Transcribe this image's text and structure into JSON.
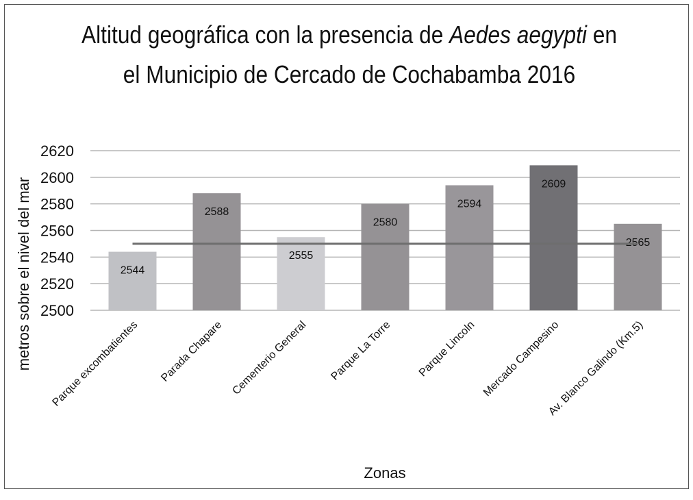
{
  "chart_data": {
    "type": "bar",
    "title_parts": [
      {
        "text": "Altitud geográfica con la presencia de ",
        "italic": false
      },
      {
        "text": "Aedes aegypti",
        "italic": true
      },
      {
        "text": " en el Municipio de Cercado de Cochabamba 2016",
        "italic": false
      }
    ],
    "xlabel": "Zonas",
    "ylabel": "metros sobre el nivel del mar",
    "categories": [
      "Parque excombatientes",
      "Parada Chapare",
      "Cementerio General",
      "Parque La Torre",
      "Parque Lincoln",
      "Mercado Campesino",
      "Av. Blanco Galindo (Km.5)"
    ],
    "values": [
      2544,
      2588,
      2555,
      2580,
      2594,
      2609,
      2565
    ],
    "bar_colors": [
      "#c0c1c5",
      "#959295",
      "#cdcdd1",
      "#959295",
      "#99969a",
      "#717074",
      "#959295"
    ],
    "reference_line": {
      "value": 2550,
      "color": "#6e6e6e"
    },
    "ylim": [
      2500,
      2620
    ],
    "yticks": [
      2500,
      2520,
      2540,
      2560,
      2580,
      2600,
      2620
    ],
    "grid": true,
    "legend": "none"
  }
}
